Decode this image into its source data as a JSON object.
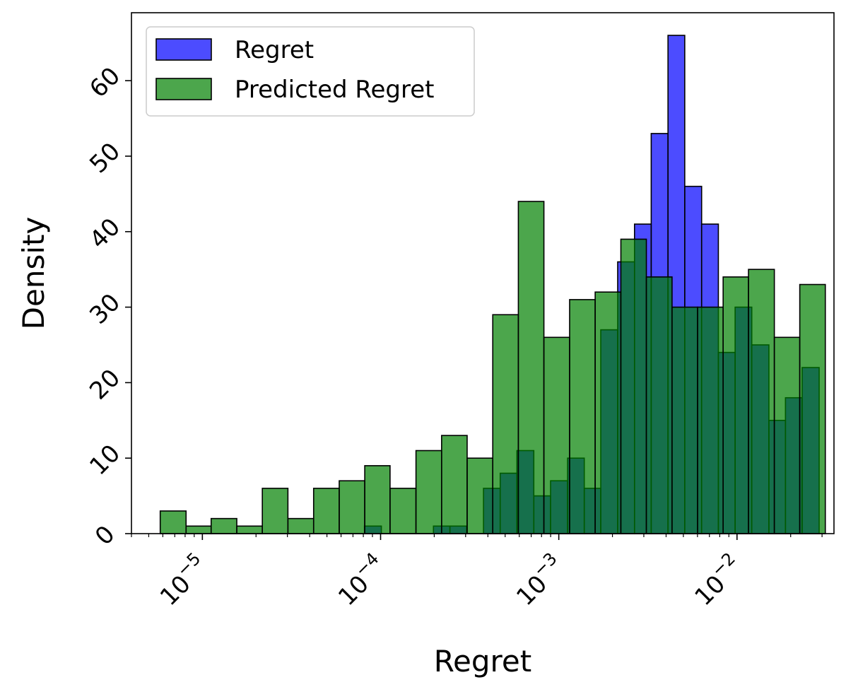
{
  "chart_data": {
    "type": "bar",
    "subtype": "histogram",
    "title": "",
    "xlabel": "Regret",
    "ylabel": "Density",
    "x_scale": "log",
    "xlim": [
      4e-06,
      0.035
    ],
    "ylim": [
      0,
      69
    ],
    "x_ticks": [
      1e-05,
      0.0001,
      0.001,
      0.01
    ],
    "x_tick_labels": [
      {
        "base": "10",
        "exp": "−5"
      },
      {
        "base": "10",
        "exp": "−4"
      },
      {
        "base": "10",
        "exp": "−3"
      },
      {
        "base": "10",
        "exp": "−2"
      }
    ],
    "y_ticks": [
      0,
      10,
      20,
      30,
      40,
      50,
      60
    ],
    "y_tick_labels": [
      "0",
      "10",
      "20",
      "30",
      "40",
      "50",
      "60"
    ],
    "legend": {
      "position": "top-left"
    },
    "series": [
      {
        "name": "Regret",
        "color": "#0000ff",
        "bins": [
          {
            "x0": 8.12e-05,
            "x1": 0.000101,
            "value": 1
          },
          {
            "x0": 0.000198,
            "x1": 0.000245,
            "value": 1
          },
          {
            "x0": 0.000245,
            "x1": 0.000304,
            "value": 1
          },
          {
            "x0": 0.000378,
            "x1": 0.000469,
            "value": 6
          },
          {
            "x0": 0.000469,
            "x1": 0.000582,
            "value": 8
          },
          {
            "x0": 0.000582,
            "x1": 0.000724,
            "value": 11
          },
          {
            "x0": 0.000724,
            "x1": 0.000899,
            "value": 5
          },
          {
            "x0": 0.000899,
            "x1": 0.00112,
            "value": 7
          },
          {
            "x0": 0.00112,
            "x1": 0.00139,
            "value": 10
          },
          {
            "x0": 0.00139,
            "x1": 0.00172,
            "value": 6
          },
          {
            "x0": 0.00172,
            "x1": 0.00214,
            "value": 27
          },
          {
            "x0": 0.00214,
            "x1": 0.00266,
            "value": 36
          },
          {
            "x0": 0.00266,
            "x1": 0.0033,
            "value": 41
          },
          {
            "x0": 0.0033,
            "x1": 0.0041,
            "value": 53
          },
          {
            "x0": 0.0041,
            "x1": 0.00509,
            "value": 66
          },
          {
            "x0": 0.00509,
            "x1": 0.00633,
            "value": 46
          },
          {
            "x0": 0.00633,
            "x1": 0.00786,
            "value": 41
          },
          {
            "x0": 0.00786,
            "x1": 0.00976,
            "value": 24
          },
          {
            "x0": 0.00976,
            "x1": 0.0121,
            "value": 30
          },
          {
            "x0": 0.0121,
            "x1": 0.0151,
            "value": 25
          },
          {
            "x0": 0.0151,
            "x1": 0.0187,
            "value": 15
          },
          {
            "x0": 0.0187,
            "x1": 0.0232,
            "value": 18
          },
          {
            "x0": 0.0232,
            "x1": 0.0289,
            "value": 22
          }
        ]
      },
      {
        "name": "Predicted Regret",
        "color": "#008000",
        "bins": [
          {
            "x0": 5.8e-06,
            "x1": 8.1e-06,
            "value": 3
          },
          {
            "x0": 8.1e-06,
            "x1": 1.12e-05,
            "value": 1
          },
          {
            "x0": 1.12e-05,
            "x1": 1.56e-05,
            "value": 2
          },
          {
            "x0": 1.56e-05,
            "x1": 2.17e-05,
            "value": 1
          },
          {
            "x0": 2.17e-05,
            "x1": 3.02e-05,
            "value": 6
          },
          {
            "x0": 3.02e-05,
            "x1": 4.21e-05,
            "value": 2
          },
          {
            "x0": 4.21e-05,
            "x1": 5.86e-05,
            "value": 6
          },
          {
            "x0": 5.86e-05,
            "x1": 8.15e-05,
            "value": 7
          },
          {
            "x0": 8.15e-05,
            "x1": 0.000113,
            "value": 9
          },
          {
            "x0": 0.000113,
            "x1": 0.000158,
            "value": 6
          },
          {
            "x0": 0.000158,
            "x1": 0.00022,
            "value": 11
          },
          {
            "x0": 0.00022,
            "x1": 0.000306,
            "value": 13
          },
          {
            "x0": 0.000306,
            "x1": 0.000426,
            "value": 10
          },
          {
            "x0": 0.000426,
            "x1": 0.000593,
            "value": 29
          },
          {
            "x0": 0.000593,
            "x1": 0.000825,
            "value": 44
          },
          {
            "x0": 0.000825,
            "x1": 0.00115,
            "value": 26
          },
          {
            "x0": 0.00115,
            "x1": 0.0016,
            "value": 31
          },
          {
            "x0": 0.0016,
            "x1": 0.00223,
            "value": 32
          },
          {
            "x0": 0.00223,
            "x1": 0.0031,
            "value": 39
          },
          {
            "x0": 0.0031,
            "x1": 0.00432,
            "value": 34
          },
          {
            "x0": 0.00432,
            "x1": 0.00601,
            "value": 30
          },
          {
            "x0": 0.00601,
            "x1": 0.00836,
            "value": 30
          },
          {
            "x0": 0.00836,
            "x1": 0.0116,
            "value": 34
          },
          {
            "x0": 0.0116,
            "x1": 0.0162,
            "value": 35
          },
          {
            "x0": 0.0162,
            "x1": 0.0225,
            "value": 26
          },
          {
            "x0": 0.0225,
            "x1": 0.0313,
            "value": 33
          }
        ]
      }
    ]
  }
}
